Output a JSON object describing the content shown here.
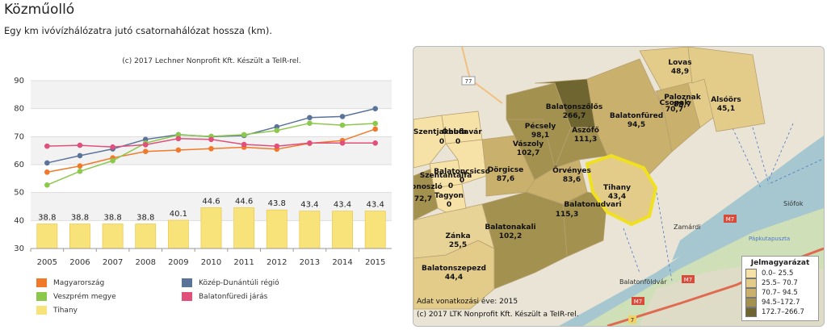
{
  "page": {
    "title": "Közműolló",
    "subtitle": "Egy km ivóvízhálózatra jutó csatornahálózat hossza (km)."
  },
  "chart_data": {
    "type": "line",
    "credit": "(c) 2017 Lechner Nonprofit Kft. Készült a TeIR-rel.",
    "categories": [
      "2005",
      "2006",
      "2007",
      "2008",
      "2009",
      "2010",
      "2011",
      "2012",
      "2013",
      "2014",
      "2015"
    ],
    "ylim": [
      30,
      90
    ],
    "yticks": [
      30,
      40,
      50,
      60,
      70,
      80,
      90
    ],
    "grid": true,
    "legend_position": "bottom",
    "series": [
      {
        "name": "Magyarország",
        "kind": "line",
        "color": "#f07a2a",
        "values": [
          57.3,
          59.5,
          62.4,
          64.7,
          65.2,
          65.7,
          66.2,
          65.5,
          67.6,
          68.6,
          72.7
        ]
      },
      {
        "name": "Közép-Dunántúli régió",
        "kind": "line",
        "color": "#5a7399",
        "values": [
          60.6,
          63.2,
          65.6,
          69.0,
          70.7,
          70.0,
          70.4,
          73.5,
          76.8,
          77.2,
          80.0
        ]
      },
      {
        "name": "Veszprém megye",
        "kind": "line",
        "color": "#8cc84b",
        "values": [
          52.7,
          57.6,
          61.4,
          67.7,
          70.6,
          70.1,
          70.7,
          72.2,
          74.8,
          74.1,
          74.7
        ]
      },
      {
        "name": "Balatonfüredi járás",
        "kind": "line",
        "color": "#e0507a",
        "values": [
          66.6,
          66.9,
          66.3,
          67.1,
          69.3,
          69.0,
          67.2,
          66.6,
          67.7,
          67.7,
          67.7
        ]
      },
      {
        "name": "Tihany",
        "kind": "bar",
        "color": "#f8e27a",
        "values": [
          38.8,
          38.8,
          38.8,
          38.8,
          40.1,
          44.6,
          44.6,
          43.8,
          43.4,
          43.4,
          43.4
        ],
        "labels": [
          "38.8",
          "38.8",
          "38.8",
          "38.8",
          "40.1",
          "44.6",
          "44.6",
          "43.8",
          "43.4",
          "43.4",
          "43.4"
        ]
      }
    ]
  },
  "map": {
    "year_text": "Adat vonatkozási éve: 2015",
    "credit_text": "(c) 2017 LTK Nonprofit Kft. Készült a TeIR-rel.",
    "legend_title": "Jelmagyarázat",
    "legend_items": [
      {
        "label": "0.0– 25.5",
        "color": "#f6e2a6"
      },
      {
        "label": "25.5– 70.7",
        "color": "#e3cc8a"
      },
      {
        "label": "70.7– 94.5",
        "color": "#c9b06c"
      },
      {
        "label": "94.5–172.7",
        "color": "#a39150"
      },
      {
        "label": "172.7–266.7",
        "color": "#6f6530"
      }
    ],
    "regions": [
      {
        "name": "Lovas",
        "value": "48,9"
      },
      {
        "name": "Paloznak",
        "value": "70,7"
      },
      {
        "name": "Csopak",
        "value": "88,7"
      },
      {
        "name": "Alsóörs",
        "value": "45,1"
      },
      {
        "name": "Balatonszőlős",
        "value": "266,7"
      },
      {
        "name": "Balatonfüred",
        "value": "94,5"
      },
      {
        "name": "Pécsely",
        "value": "98,1"
      },
      {
        "name": "Vászoly",
        "value": "102,7"
      },
      {
        "name": "Aszófő",
        "value": "111,3"
      },
      {
        "name": "Örvényes",
        "value": "83,6"
      },
      {
        "name": "Tihany",
        "value": "43,4"
      },
      {
        "name": "Dörgicse",
        "value": "87,6"
      },
      {
        "name": "Szentjakabfa",
        "value": "0"
      },
      {
        "name": "Óbudavár",
        "value": "0"
      },
      {
        "name": "Balatoncsicsó",
        "value": "0"
      },
      {
        "name": "Szentantalfa",
        "value": "0"
      },
      {
        "name": "Tagyon",
        "value": "0"
      },
      {
        "name": "Monoszló",
        "value": "72,7"
      },
      {
        "name": "Balatonudvari",
        "value": "115,3"
      },
      {
        "name": "Balatonakali",
        "value": "102,2"
      },
      {
        "name": "Zánka",
        "value": "25,5"
      },
      {
        "name": "Balatonszepezd",
        "value": "44,4"
      }
    ],
    "place_labels": [
      "Siófok",
      "Zamárdi",
      "Balatonföldvár",
      "Pápkutapuszta"
    ],
    "road_labels": [
      "77",
      "M7",
      "M7",
      "M7",
      "7"
    ]
  }
}
